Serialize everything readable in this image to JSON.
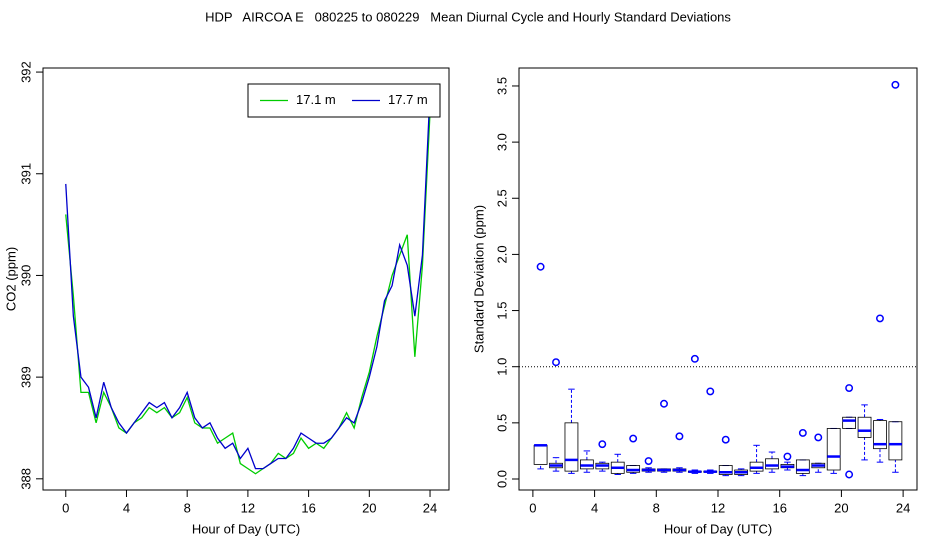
{
  "title": "HDP   AIRCOA E   080225 to 080229   Mean Diurnal Cycle and Hourly Standard Deviations",
  "chart_data": [
    {
      "type": "line",
      "xlabel": "Hour of Day (UTC)",
      "ylabel": "CO2 (ppm)",
      "x": [
        0,
        0.5,
        1,
        1.5,
        2,
        2.5,
        3,
        3.5,
        4,
        4.5,
        5,
        5.5,
        6,
        6.5,
        7,
        7.5,
        8,
        8.5,
        9,
        9.5,
        10,
        10.5,
        11,
        11.5,
        12,
        12.5,
        13,
        13.5,
        14,
        14.5,
        15,
        15.5,
        16,
        16.5,
        17,
        17.5,
        18,
        18.5,
        19,
        19.5,
        20,
        20.5,
        21,
        21.5,
        22,
        22.5,
        23,
        23.5,
        24
      ],
      "series": [
        {
          "name": "17.1 m",
          "color": "#00cc00",
          "values": [
            390.6,
            389.8,
            388.85,
            388.85,
            388.55,
            388.85,
            388.7,
            388.5,
            388.45,
            388.55,
            388.6,
            388.7,
            388.65,
            388.7,
            388.6,
            388.65,
            388.8,
            388.55,
            388.5,
            388.5,
            388.35,
            388.4,
            388.45,
            388.15,
            388.1,
            388.05,
            388.1,
            388.15,
            388.25,
            388.2,
            388.25,
            388.4,
            388.3,
            388.35,
            388.3,
            388.4,
            388.5,
            388.65,
            388.5,
            388.8,
            389.05,
            389.4,
            389.7,
            390.0,
            390.2,
            390.4,
            389.2,
            390.1,
            391.6
          ]
        },
        {
          "name": "17.7 m",
          "color": "#0000cc",
          "values": [
            390.9,
            389.6,
            389.0,
            388.9,
            388.6,
            388.95,
            388.7,
            388.55,
            388.45,
            388.55,
            388.65,
            388.75,
            388.7,
            388.75,
            388.6,
            388.7,
            388.85,
            388.6,
            388.5,
            388.55,
            388.4,
            388.3,
            388.35,
            388.2,
            388.3,
            388.1,
            388.1,
            388.15,
            388.2,
            388.2,
            388.3,
            388.45,
            388.4,
            388.35,
            388.35,
            388.4,
            388.5,
            388.6,
            388.55,
            388.75,
            389.0,
            389.3,
            389.75,
            389.9,
            390.3,
            390.1,
            389.6,
            390.2,
            391.8
          ]
        }
      ],
      "xlim": [
        -1.5,
        25.25
      ],
      "ylim": [
        387.89,
        392.04
      ],
      "xticks": [
        0,
        4,
        8,
        12,
        16,
        20,
        24
      ],
      "yticks": [
        388,
        389,
        390,
        391,
        392
      ],
      "legend": "topright"
    },
    {
      "type": "box",
      "xlabel": "Hour of Day (UTC)",
      "ylabel": "Standard Deviation (ppm)",
      "color": "#0000ff",
      "hline": 1,
      "x": [
        0.5,
        1.5,
        2.5,
        3.5,
        4.5,
        5.5,
        6.5,
        7.5,
        8.5,
        9.5,
        10.5,
        11.5,
        12.5,
        13.5,
        14.5,
        15.5,
        16.5,
        17.5,
        18.5,
        19.5,
        20.5,
        21.5,
        22.5,
        23.5
      ],
      "min": [
        0.09,
        0.07,
        0.05,
        0.06,
        0.07,
        0.04,
        0.05,
        0.06,
        0.06,
        0.06,
        0.05,
        0.05,
        0.03,
        0.03,
        0.05,
        0.06,
        0.08,
        0.03,
        0.06,
        0.05,
        0.45,
        0.17,
        0.15,
        0.06
      ],
      "q1": [
        0.13,
        0.1,
        0.07,
        0.09,
        0.09,
        0.05,
        0.06,
        0.07,
        0.07,
        0.07,
        0.06,
        0.06,
        0.04,
        0.04,
        0.07,
        0.09,
        0.1,
        0.05,
        0.1,
        0.08,
        0.45,
        0.37,
        0.27,
        0.17
      ],
      "median": [
        0.3,
        0.12,
        0.17,
        0.12,
        0.12,
        0.1,
        0.08,
        0.08,
        0.08,
        0.08,
        0.065,
        0.065,
        0.06,
        0.06,
        0.1,
        0.12,
        0.11,
        0.08,
        0.12,
        0.2,
        0.52,
        0.43,
        0.31,
        0.31
      ],
      "q3": [
        0.3,
        0.14,
        0.5,
        0.17,
        0.14,
        0.15,
        0.12,
        0.09,
        0.09,
        0.09,
        0.07,
        0.07,
        0.12,
        0.08,
        0.15,
        0.18,
        0.13,
        0.17,
        0.14,
        0.45,
        0.55,
        0.55,
        0.52,
        0.51
      ],
      "max": [
        0.3,
        0.19,
        0.8,
        0.25,
        0.15,
        0.22,
        0.12,
        0.1,
        0.09,
        0.1,
        0.08,
        0.08,
        0.12,
        0.09,
        0.3,
        0.24,
        0.15,
        0.17,
        0.14,
        0.45,
        0.55,
        0.66,
        0.53,
        0.51
      ],
      "outliers": [
        [
          1.89
        ],
        [
          1.04
        ],
        [],
        [],
        [
          0.31
        ],
        [],
        [
          0.36
        ],
        [
          0.16
        ],
        [
          0.67
        ],
        [
          0.38
        ],
        [
          1.07
        ],
        [
          0.78
        ],
        [
          0.35
        ],
        [],
        [],
        [],
        [
          0.2
        ],
        [
          0.41
        ],
        [
          0.37
        ],
        [],
        [
          0.81,
          0.04
        ],
        [],
        [
          1.43
        ],
        [
          3.51
        ]
      ],
      "xlim": [
        -0.9,
        24.9
      ],
      "ylim": [
        -0.098,
        3.66
      ],
      "xticks": [
        0,
        4,
        8,
        12,
        16,
        20,
        24
      ],
      "yticks": [
        {
          "value": 0,
          "label": "0.0"
        },
        0.5,
        {
          "value": 1,
          "label": "1.0"
        },
        1.5,
        {
          "value": 2,
          "label": "2.0"
        },
        2.5,
        {
          "value": 3,
          "label": "3.0"
        },
        3.5
      ]
    }
  ]
}
